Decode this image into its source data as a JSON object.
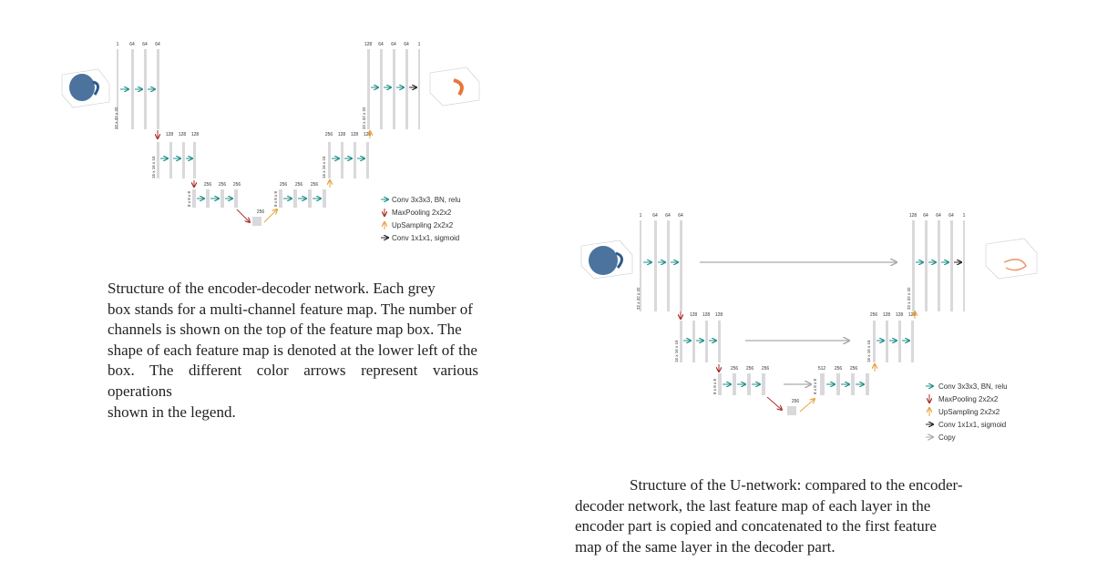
{
  "figure1": {
    "caption_lines": [
      "Structure of the encoder-decoder network. Each grey",
      "box stands for a multi-channel feature map. The number of",
      "channels is shown on the top of the feature map box. The",
      "shape of each feature map is denoted at the lower left of the",
      "box. The different color arrows represent various operations",
      "shown in the legend."
    ],
    "encoder_channels": {
      "level1": [
        "1",
        "64",
        "64",
        "64"
      ],
      "level2": [
        "128",
        "128",
        "128"
      ],
      "level3": [
        "256",
        "256",
        "256"
      ]
    },
    "bottleneck_channels": "256",
    "decoder_channels": {
      "level3": [
        "256",
        "256",
        "256"
      ],
      "level2": [
        "256",
        "128",
        "128",
        "128"
      ],
      "level1": [
        "128",
        "64",
        "64",
        "64",
        "1"
      ]
    },
    "shape_labels": {
      "level1": "32 x 32 x 32",
      "level2": "16 x 16 x 16",
      "level3": "8 x 8 x 8"
    },
    "legend": [
      {
        "label": "Conv 3x3x3, BN, relu",
        "color": "#1f8f8a"
      },
      {
        "label": "MaxPooling 2x2x2",
        "color": "#a8322d"
      },
      {
        "label": "UpSampling 2x2x2",
        "color": "#e8a33a"
      },
      {
        "label": "Conv 1x1x1, sigmoid",
        "color": "#222222"
      }
    ]
  },
  "figure2": {
    "caption_lines": [
      "Structure of the U-network: compared to the encoder-",
      "decoder network, the last feature map of each layer in the",
      "encoder part is copied and concatenated to the first feature",
      "map of the same layer in the decoder part."
    ],
    "encoder_channels": {
      "level1": [
        "1",
        "64",
        "64",
        "64"
      ],
      "level2": [
        "128",
        "128",
        "128"
      ],
      "level3": [
        "256",
        "256",
        "256"
      ]
    },
    "bottleneck_channels": "256",
    "decoder_channels": {
      "level3": [
        "512",
        "256",
        "256"
      ],
      "level2": [
        "256",
        "128",
        "128",
        "128"
      ],
      "level1": [
        "128",
        "64",
        "64",
        "64",
        "1"
      ]
    },
    "shape_labels": {
      "level1": "32 x 32 x 32",
      "level2": "16 x 16 x 16",
      "level3": "8 x 8 x 8"
    },
    "legend": [
      {
        "label": "Conv 3x3x3, BN, relu",
        "color": "#1f8f8a"
      },
      {
        "label": "MaxPooling 2x2x2",
        "color": "#a8322d"
      },
      {
        "label": "UpSampling 2x2x2",
        "color": "#e8a33a"
      },
      {
        "label": "Conv 1x1x1, sigmoid",
        "color": "#222222"
      },
      {
        "label": "Copy",
        "color": "#aaaaaa"
      }
    ]
  },
  "colors": {
    "conv": "#1f8f8a",
    "pool": "#a8322d",
    "up": "#e8a33a",
    "sigmoid": "#222222",
    "copy": "#aaaaaa",
    "feature_map": "#d9d9dc",
    "input_cloud": "#2c5a8c",
    "output_shape": "#e8753a"
  }
}
